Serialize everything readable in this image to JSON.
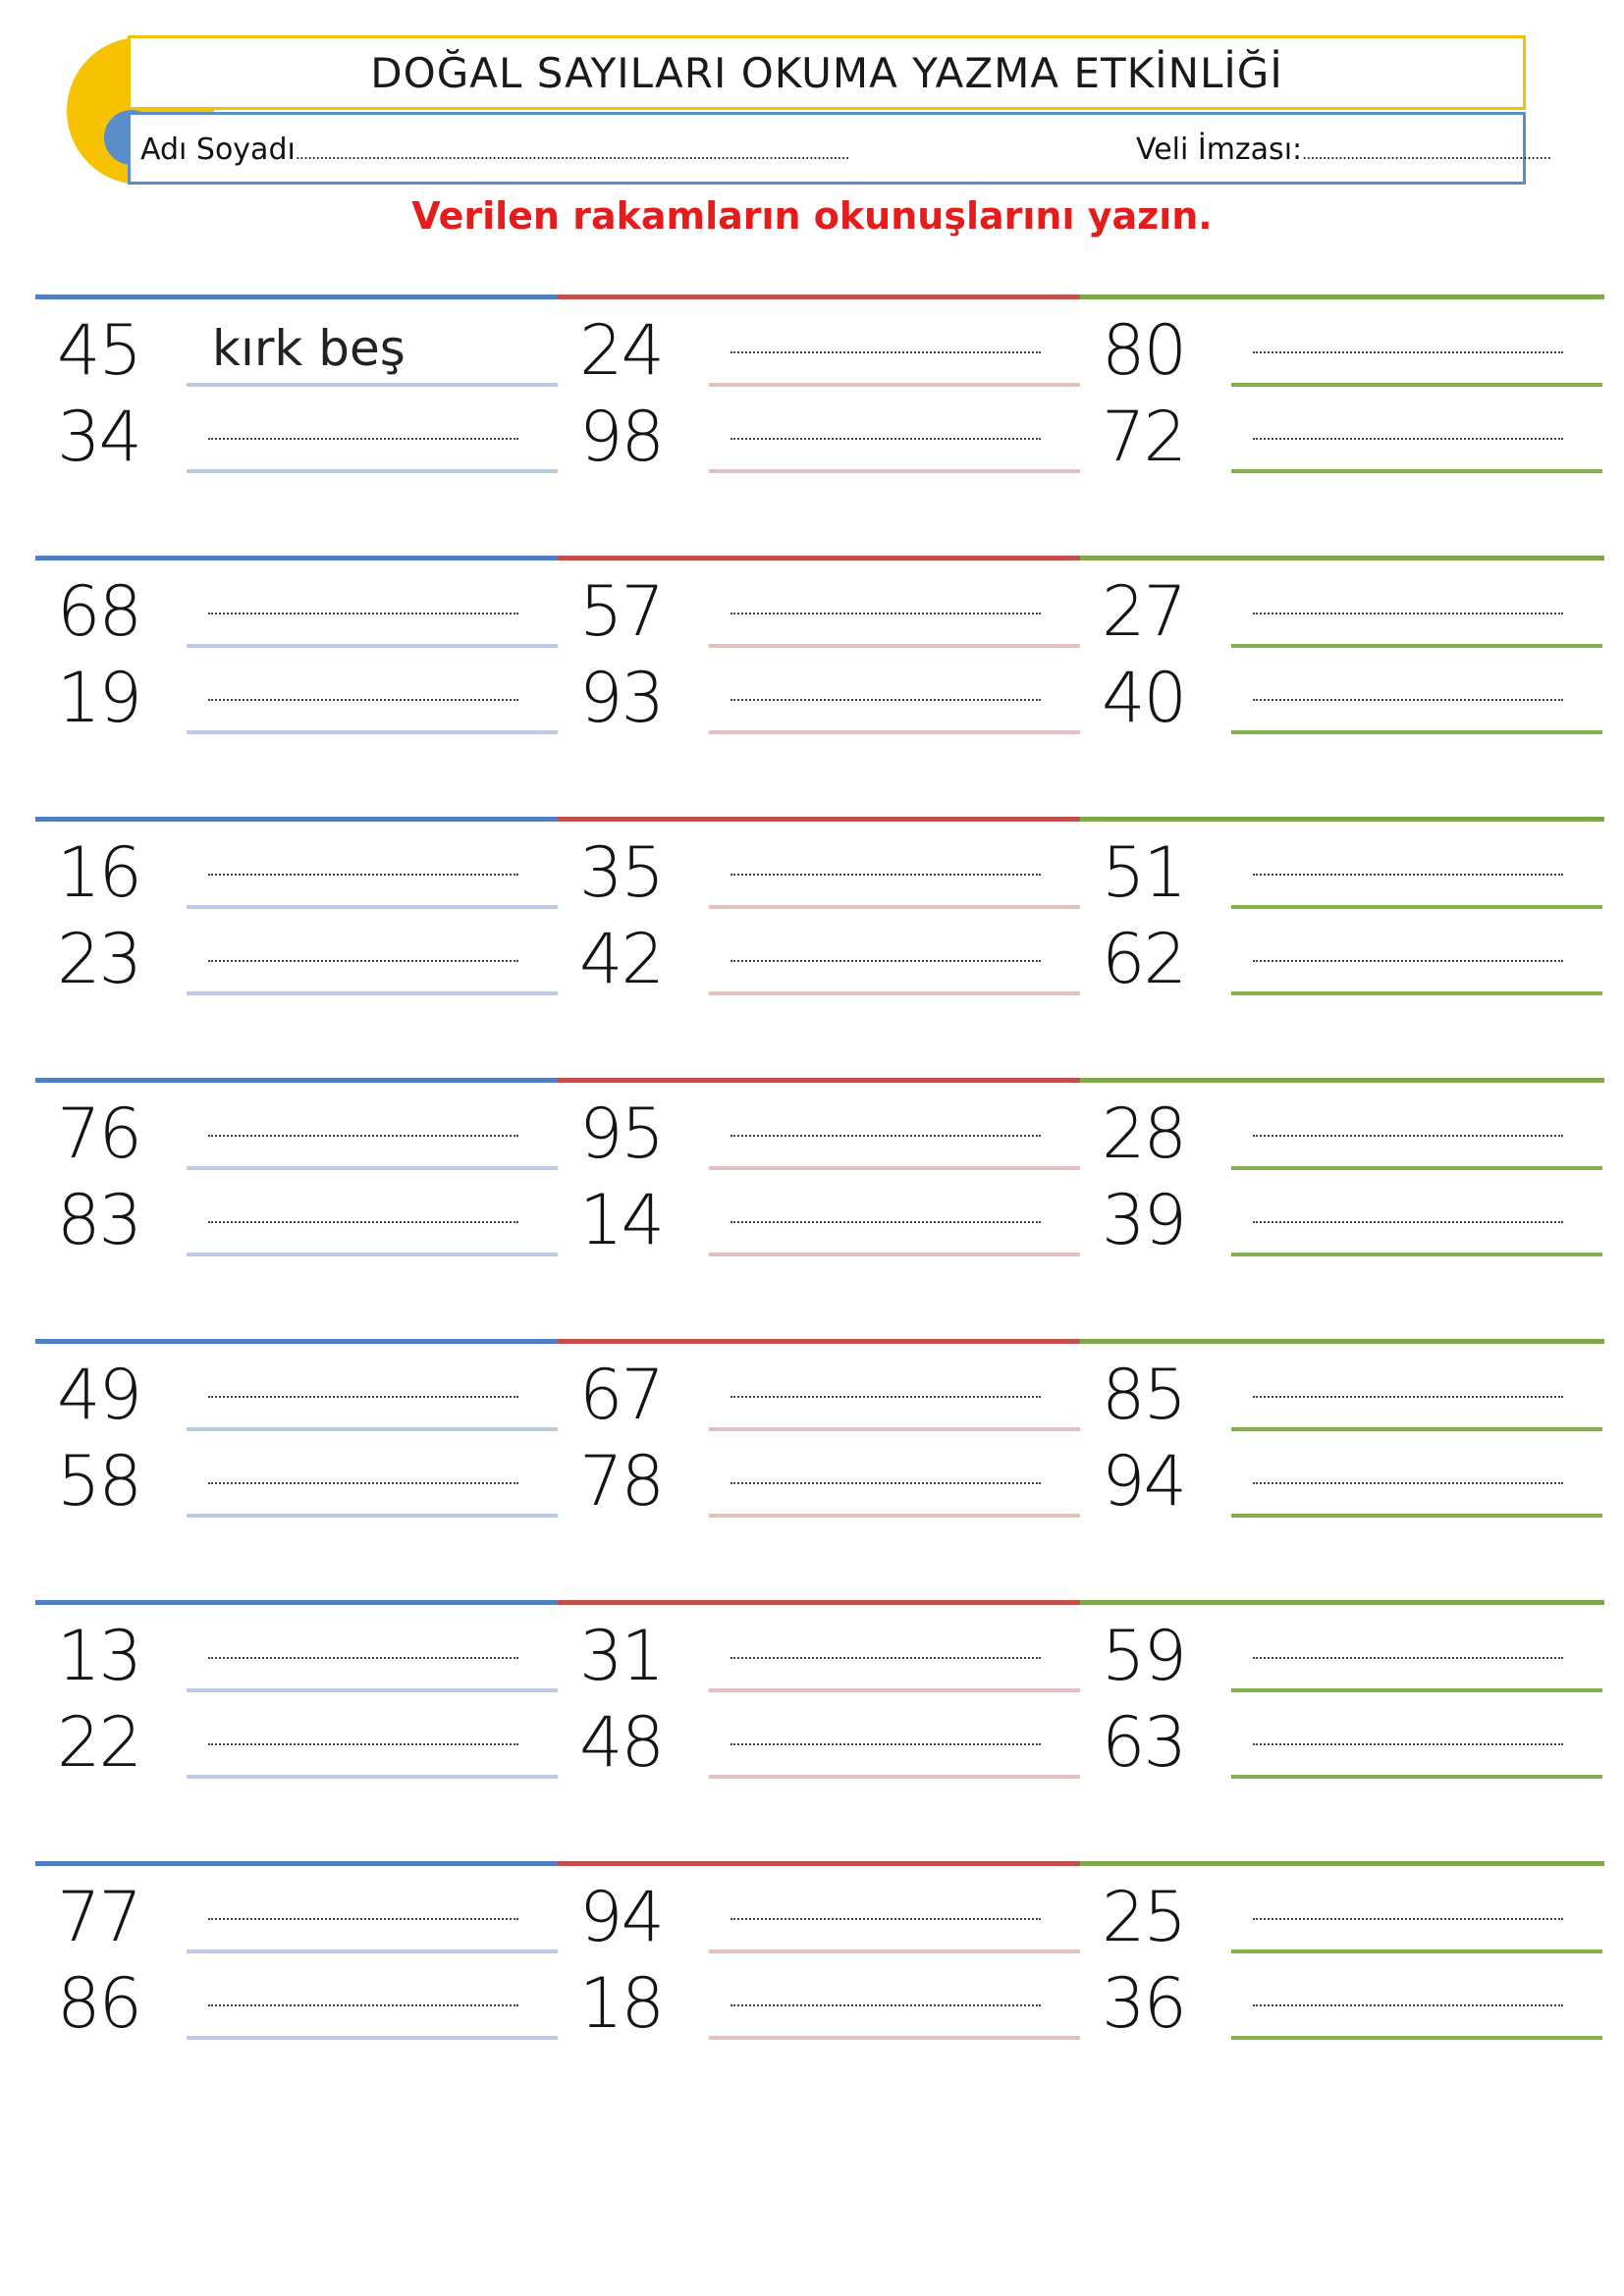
{
  "header": {
    "title": "DOĞAL SAYILARI OKUMA YAZMA ETKİNLİĞİ",
    "name_label": "Adı Soyadı",
    "signature_label": "Veli İmzası:"
  },
  "instruction": "Verilen rakamların okunuşlarını yazın.",
  "groups": [
    {
      "columns": [
        {
          "numbers": [
            "45",
            "34"
          ],
          "answers": [
            "kırk beş",
            ""
          ]
        },
        {
          "numbers": [
            "24",
            "98"
          ],
          "answers": [
            "",
            ""
          ]
        },
        {
          "numbers": [
            "80",
            "72"
          ],
          "answers": [
            "",
            ""
          ]
        }
      ]
    },
    {
      "columns": [
        {
          "numbers": [
            "68",
            "19"
          ],
          "answers": [
            "",
            ""
          ]
        },
        {
          "numbers": [
            "57",
            "93"
          ],
          "answers": [
            "",
            ""
          ]
        },
        {
          "numbers": [
            "27",
            "40"
          ],
          "answers": [
            "",
            ""
          ]
        }
      ]
    },
    {
      "columns": [
        {
          "numbers": [
            "16",
            "23"
          ],
          "answers": [
            "",
            ""
          ]
        },
        {
          "numbers": [
            "35",
            "42"
          ],
          "answers": [
            "",
            ""
          ]
        },
        {
          "numbers": [
            "51",
            "62"
          ],
          "answers": [
            "",
            ""
          ]
        }
      ]
    },
    {
      "columns": [
        {
          "numbers": [
            "76",
            "83"
          ],
          "answers": [
            "",
            ""
          ]
        },
        {
          "numbers": [
            "95",
            "14"
          ],
          "answers": [
            "",
            ""
          ]
        },
        {
          "numbers": [
            "28",
            "39"
          ],
          "answers": [
            "",
            ""
          ]
        }
      ]
    },
    {
      "columns": [
        {
          "numbers": [
            "49",
            "58"
          ],
          "answers": [
            "",
            ""
          ]
        },
        {
          "numbers": [
            "67",
            "78"
          ],
          "answers": [
            "",
            ""
          ]
        },
        {
          "numbers": [
            "85",
            "94"
          ],
          "answers": [
            "",
            ""
          ]
        }
      ]
    },
    {
      "columns": [
        {
          "numbers": [
            "13",
            "22"
          ],
          "answers": [
            "",
            ""
          ]
        },
        {
          "numbers": [
            "31",
            "48"
          ],
          "answers": [
            "",
            ""
          ]
        },
        {
          "numbers": [
            "59",
            "63"
          ],
          "answers": [
            "",
            ""
          ]
        }
      ]
    },
    {
      "columns": [
        {
          "numbers": [
            "77",
            "86"
          ],
          "answers": [
            "",
            ""
          ]
        },
        {
          "numbers": [
            "94",
            "18"
          ],
          "answers": [
            "",
            ""
          ]
        },
        {
          "numbers": [
            "25",
            "36"
          ],
          "answers": [
            "",
            ""
          ]
        }
      ]
    }
  ],
  "colors": {
    "title_border": "#f2c200",
    "name_border": "#5b8ec8",
    "instruction": "#e51c1c",
    "column_accents": [
      "#4f7ec2",
      "#c0504d",
      "#7fa84a"
    ]
  }
}
